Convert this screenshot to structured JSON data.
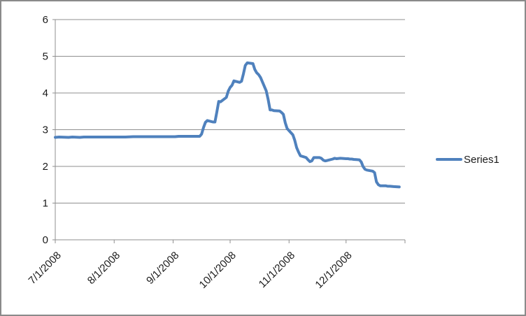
{
  "chart_data": {
    "type": "line",
    "title": "",
    "xlabel": "",
    "ylabel": "",
    "ylim": [
      0,
      6
    ],
    "grid": true,
    "y_tick_labels": [
      "0",
      "1",
      "2",
      "3",
      "4",
      "5",
      "6"
    ],
    "x_ticks": [
      {
        "date": "2008-07-01",
        "label": "7/1/2008"
      },
      {
        "date": "2008-08-01",
        "label": "8/1/2008"
      },
      {
        "date": "2008-09-01",
        "label": "9/1/2008"
      },
      {
        "date": "2008-10-01",
        "label": "10/1/2008"
      },
      {
        "date": "2008-11-01",
        "label": "11/1/2008"
      },
      {
        "date": "2008-12-01",
        "label": "12/1/2008"
      }
    ],
    "x_axis_start": "2008-07-01",
    "x_axis_end": "2009-01-01",
    "legend": {
      "position": "right",
      "entries": [
        "Series1"
      ]
    },
    "colors": {
      "series": "#4F81BD",
      "gridline": "#8f8f8f",
      "axis": "#8f8f8f",
      "text": "#1a1a1a"
    },
    "series": [
      {
        "name": "Series1",
        "color": "#4F81BD",
        "points": [
          [
            "2008-07-01",
            2.79
          ],
          [
            "2008-07-03",
            2.8
          ],
          [
            "2008-07-08",
            2.79
          ],
          [
            "2008-07-10",
            2.8
          ],
          [
            "2008-07-14",
            2.79
          ],
          [
            "2008-07-16",
            2.8
          ],
          [
            "2008-07-18",
            2.8
          ],
          [
            "2008-07-22",
            2.8
          ],
          [
            "2008-07-24",
            2.8
          ],
          [
            "2008-07-28",
            2.8
          ],
          [
            "2008-07-30",
            2.8
          ],
          [
            "2008-08-01",
            2.8
          ],
          [
            "2008-08-05",
            2.8
          ],
          [
            "2008-08-07",
            2.8
          ],
          [
            "2008-08-11",
            2.81
          ],
          [
            "2008-08-13",
            2.81
          ],
          [
            "2008-08-15",
            2.81
          ],
          [
            "2008-08-19",
            2.81
          ],
          [
            "2008-08-21",
            2.81
          ],
          [
            "2008-08-25",
            2.81
          ],
          [
            "2008-08-27",
            2.81
          ],
          [
            "2008-08-29",
            2.81
          ],
          [
            "2008-09-02",
            2.81
          ],
          [
            "2008-09-04",
            2.82
          ],
          [
            "2008-09-08",
            2.82
          ],
          [
            "2008-09-10",
            2.82
          ],
          [
            "2008-09-12",
            2.82
          ],
          [
            "2008-09-15",
            2.82
          ],
          [
            "2008-09-16",
            2.88
          ],
          [
            "2008-09-17",
            3.06
          ],
          [
            "2008-09-18",
            3.2
          ],
          [
            "2008-09-19",
            3.25
          ],
          [
            "2008-09-22",
            3.21
          ],
          [
            "2008-09-23",
            3.21
          ],
          [
            "2008-09-24",
            3.48
          ],
          [
            "2008-09-25",
            3.77
          ],
          [
            "2008-09-26",
            3.76
          ],
          [
            "2008-09-29",
            3.88
          ],
          [
            "2008-09-30",
            4.05
          ],
          [
            "2008-10-01",
            4.15
          ],
          [
            "2008-10-02",
            4.21
          ],
          [
            "2008-10-03",
            4.33
          ],
          [
            "2008-10-06",
            4.29
          ],
          [
            "2008-10-07",
            4.32
          ],
          [
            "2008-10-08",
            4.52
          ],
          [
            "2008-10-09",
            4.75
          ],
          [
            "2008-10-10",
            4.82
          ],
          [
            "2008-10-13",
            4.8
          ],
          [
            "2008-10-14",
            4.64
          ],
          [
            "2008-10-15",
            4.55
          ],
          [
            "2008-10-16",
            4.5
          ],
          [
            "2008-10-17",
            4.42
          ],
          [
            "2008-10-20",
            4.06
          ],
          [
            "2008-10-21",
            3.83
          ],
          [
            "2008-10-22",
            3.54
          ],
          [
            "2008-10-23",
            3.54
          ],
          [
            "2008-10-24",
            3.52
          ],
          [
            "2008-10-27",
            3.51
          ],
          [
            "2008-10-28",
            3.47
          ],
          [
            "2008-10-29",
            3.42
          ],
          [
            "2008-10-30",
            3.19
          ],
          [
            "2008-10-31",
            3.03
          ],
          [
            "2008-11-03",
            2.86
          ],
          [
            "2008-11-04",
            2.71
          ],
          [
            "2008-11-05",
            2.51
          ],
          [
            "2008-11-06",
            2.39
          ],
          [
            "2008-11-07",
            2.29
          ],
          [
            "2008-11-10",
            2.24
          ],
          [
            "2008-11-11",
            2.18
          ],
          [
            "2008-11-12",
            2.13
          ],
          [
            "2008-11-13",
            2.15
          ],
          [
            "2008-11-14",
            2.24
          ],
          [
            "2008-11-17",
            2.24
          ],
          [
            "2008-11-18",
            2.22
          ],
          [
            "2008-11-19",
            2.17
          ],
          [
            "2008-11-20",
            2.15
          ],
          [
            "2008-11-21",
            2.16
          ],
          [
            "2008-11-24",
            2.2
          ],
          [
            "2008-11-25",
            2.22
          ],
          [
            "2008-11-26",
            2.21
          ],
          [
            "2008-11-28",
            2.22
          ],
          [
            "2008-12-01",
            2.21
          ],
          [
            "2008-12-02",
            2.21
          ],
          [
            "2008-12-03",
            2.2
          ],
          [
            "2008-12-04",
            2.2
          ],
          [
            "2008-12-05",
            2.19
          ],
          [
            "2008-12-08",
            2.18
          ],
          [
            "2008-12-09",
            2.12
          ],
          [
            "2008-12-10",
            1.99
          ],
          [
            "2008-12-11",
            1.92
          ],
          [
            "2008-12-12",
            1.9
          ],
          [
            "2008-12-15",
            1.87
          ],
          [
            "2008-12-16",
            1.83
          ],
          [
            "2008-12-17",
            1.58
          ],
          [
            "2008-12-18",
            1.5
          ],
          [
            "2008-12-19",
            1.47
          ],
          [
            "2008-12-22",
            1.47
          ],
          [
            "2008-12-23",
            1.46
          ],
          [
            "2008-12-24",
            1.46
          ],
          [
            "2008-12-26",
            1.45
          ],
          [
            "2008-12-29",
            1.44
          ]
        ]
      }
    ]
  }
}
